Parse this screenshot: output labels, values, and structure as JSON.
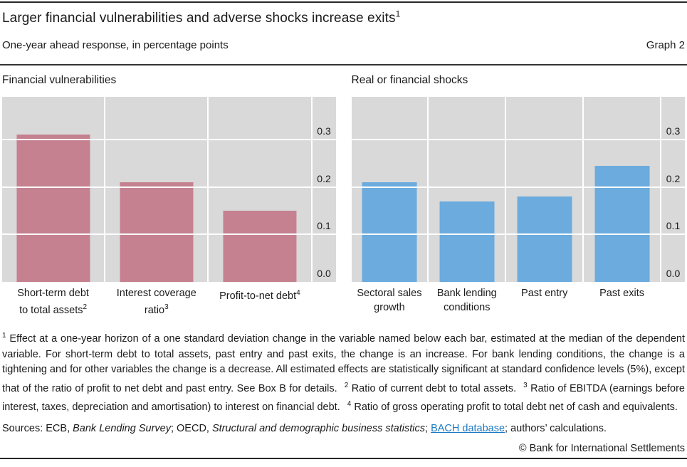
{
  "header": {
    "title": "Larger financial vulnerabilities and adverse shocks increase exits",
    "title_sup": "1",
    "subtitle": "One-year ahead response, in percentage points",
    "graph_label": "Graph 2"
  },
  "colors": {
    "bar_pink": "#c58190",
    "bar_blue": "#6cabdd",
    "plot_bg": "#d9d9d9",
    "gridline": "#ffffff",
    "rule": "#262626",
    "link": "#1b7ac2"
  },
  "chart_data": [
    {
      "type": "bar",
      "title": "Financial vulnerabilities",
      "bar_color": "#c58190",
      "categories": [
        {
          "lines": [
            "Short-term debt",
            "to total assets"
          ],
          "sup": "2"
        },
        {
          "lines": [
            "Interest coverage",
            "ratio"
          ],
          "sup": "3"
        },
        {
          "lines": [
            "Profit-to-net debt"
          ],
          "sup": "4"
        }
      ],
      "values": [
        0.31,
        0.21,
        0.15
      ],
      "ylabel": "percentage points",
      "yticks": [
        0.0,
        0.1,
        0.2,
        0.3
      ],
      "ylim": [
        0,
        0.39
      ],
      "grid": true,
      "tick_side": "right"
    },
    {
      "type": "bar",
      "title": "Real or financial shocks",
      "bar_color": "#6cabdd",
      "categories": [
        {
          "lines": [
            "Sectoral sales",
            "growth"
          ]
        },
        {
          "lines": [
            "Bank lending",
            "conditions"
          ]
        },
        {
          "lines": [
            "Past entry"
          ]
        },
        {
          "lines": [
            "Past exits"
          ]
        }
      ],
      "values": [
        0.21,
        0.17,
        0.18,
        0.245
      ],
      "ylabel": "percentage points",
      "yticks": [
        0.0,
        0.1,
        0.2,
        0.3
      ],
      "ylim": [
        0,
        0.39
      ],
      "grid": true,
      "tick_side": "right"
    }
  ],
  "footnotes": {
    "segments": [
      {
        "sup": "1",
        "text": " Effect at a one-year horizon of a one standard deviation change in the variable named below each bar, estimated at the median of the dependent variable. For short-term debt to total assets, past entry and past exits, the change is an increase. For bank lending conditions, the change is a tightening and for other variables the change is a decrease. All estimated effects are statistically significant at standard confidence levels (5%), except that of the ratio of profit to net debt and past entry. See Box B for details."
      },
      {
        "sup": "2",
        "text": " Ratio of current debt to total assets."
      },
      {
        "sup": "3",
        "text": " Ratio of EBITDA (earnings before interest, taxes, depreciation and amortisation) to interest on financial debt."
      },
      {
        "sup": "4",
        "text": " Ratio of gross operating profit to total debt net of cash and equivalents."
      }
    ]
  },
  "sources": {
    "segments": [
      {
        "text": "Sources: ECB, "
      },
      {
        "text": "Bank Lending Survey",
        "style": "italic"
      },
      {
        "text": "; OECD, "
      },
      {
        "text": "Structural and demographic business statistics",
        "style": "italic"
      },
      {
        "text": "; "
      },
      {
        "text": "BACH database",
        "style": "link"
      },
      {
        "text": "; authors’ calculations."
      }
    ]
  },
  "footer": {
    "copyright": "© Bank for International Settlements"
  }
}
